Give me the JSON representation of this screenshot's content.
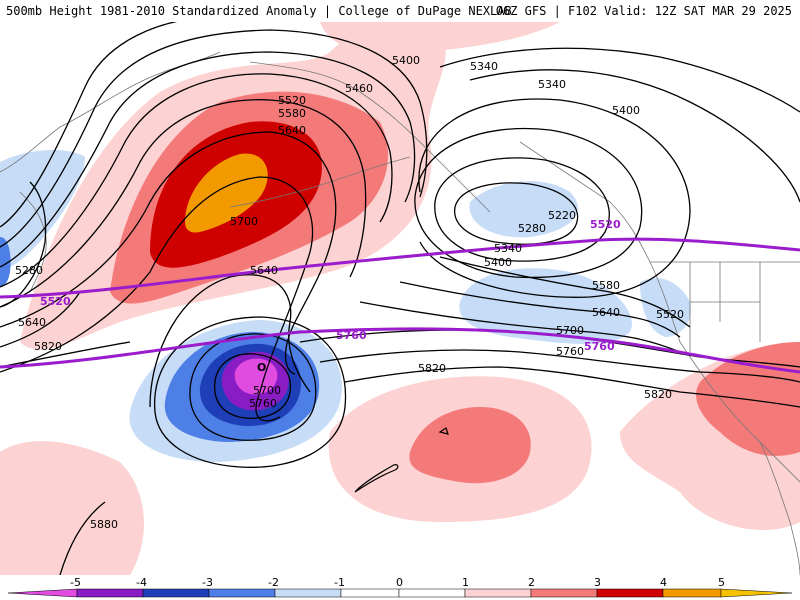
{
  "header": {
    "title": "500mb Height 1981-2010 Standardized Anomaly | College of DuPage NEXLAB",
    "run_info": "06Z GFS | F102 Valid: 12Z SAT MAR 29 2025"
  },
  "colors": {
    "neg5": "#e04be0",
    "neg4": "#8a1cc4",
    "neg3": "#1f3fb8",
    "neg2": "#4d7fe6",
    "neg1": "#c6dcf7",
    "pos1": "#fcd2d2",
    "pos2": "#f47a7a",
    "pos3": "#cf0000",
    "pos4": "#f39a00",
    "climo_line": "#9a1ccc",
    "contour": "#000000",
    "coast": "#777777"
  },
  "map": {
    "contour_labels": [
      {
        "id": "h5400-nw",
        "text": "5400"
      },
      {
        "id": "h5340-n",
        "text": "5340"
      },
      {
        "id": "h5340-ne",
        "text": "5340"
      },
      {
        "id": "h5460",
        "text": "5460"
      },
      {
        "id": "h5400-ne",
        "text": "5400"
      },
      {
        "id": "h5520-low",
        "text": "5520"
      },
      {
        "id": "h5580",
        "text": "5580"
      },
      {
        "id": "h5640-low",
        "text": "5640"
      },
      {
        "id": "h5700-ridge",
        "text": "5700"
      },
      {
        "id": "h5220",
        "text": "5220"
      },
      {
        "id": "h5280-e",
        "text": "5280"
      },
      {
        "id": "h5340-e",
        "text": "5340"
      },
      {
        "id": "h5400-e",
        "text": "5400"
      },
      {
        "id": "h5580-e",
        "text": "5580"
      },
      {
        "id": "h5640-e",
        "text": "5640"
      },
      {
        "id": "h5520-e",
        "text": "5520"
      },
      {
        "id": "h5640-mid",
        "text": "5640"
      },
      {
        "id": "h5280-w",
        "text": "5280"
      },
      {
        "id": "h5640-w",
        "text": "5640"
      },
      {
        "id": "h5820-w",
        "text": "5820"
      },
      {
        "id": "h5700-cut",
        "text": "5700"
      },
      {
        "id": "h5760-cut",
        "text": "5760"
      },
      {
        "id": "h5700-e",
        "text": "5700"
      },
      {
        "id": "h5760-e",
        "text": "5760"
      },
      {
        "id": "h5820-mid",
        "text": "5820"
      },
      {
        "id": "h5820-e",
        "text": "5820"
      },
      {
        "id": "h5880",
        "text": "5880"
      }
    ],
    "climo_labels": [
      {
        "id": "c5520-e",
        "text": "5520"
      },
      {
        "id": "c5520-w",
        "text": "5520"
      },
      {
        "id": "c5760-mid",
        "text": "5760"
      },
      {
        "id": "c5760-e",
        "text": "5760"
      }
    ],
    "low_marker": "O"
  },
  "colorbar": {
    "ticks": [
      "-5",
      "-4",
      "-3",
      "-2",
      "-1",
      "0",
      "1",
      "2",
      "3",
      "4",
      "5"
    ]
  }
}
